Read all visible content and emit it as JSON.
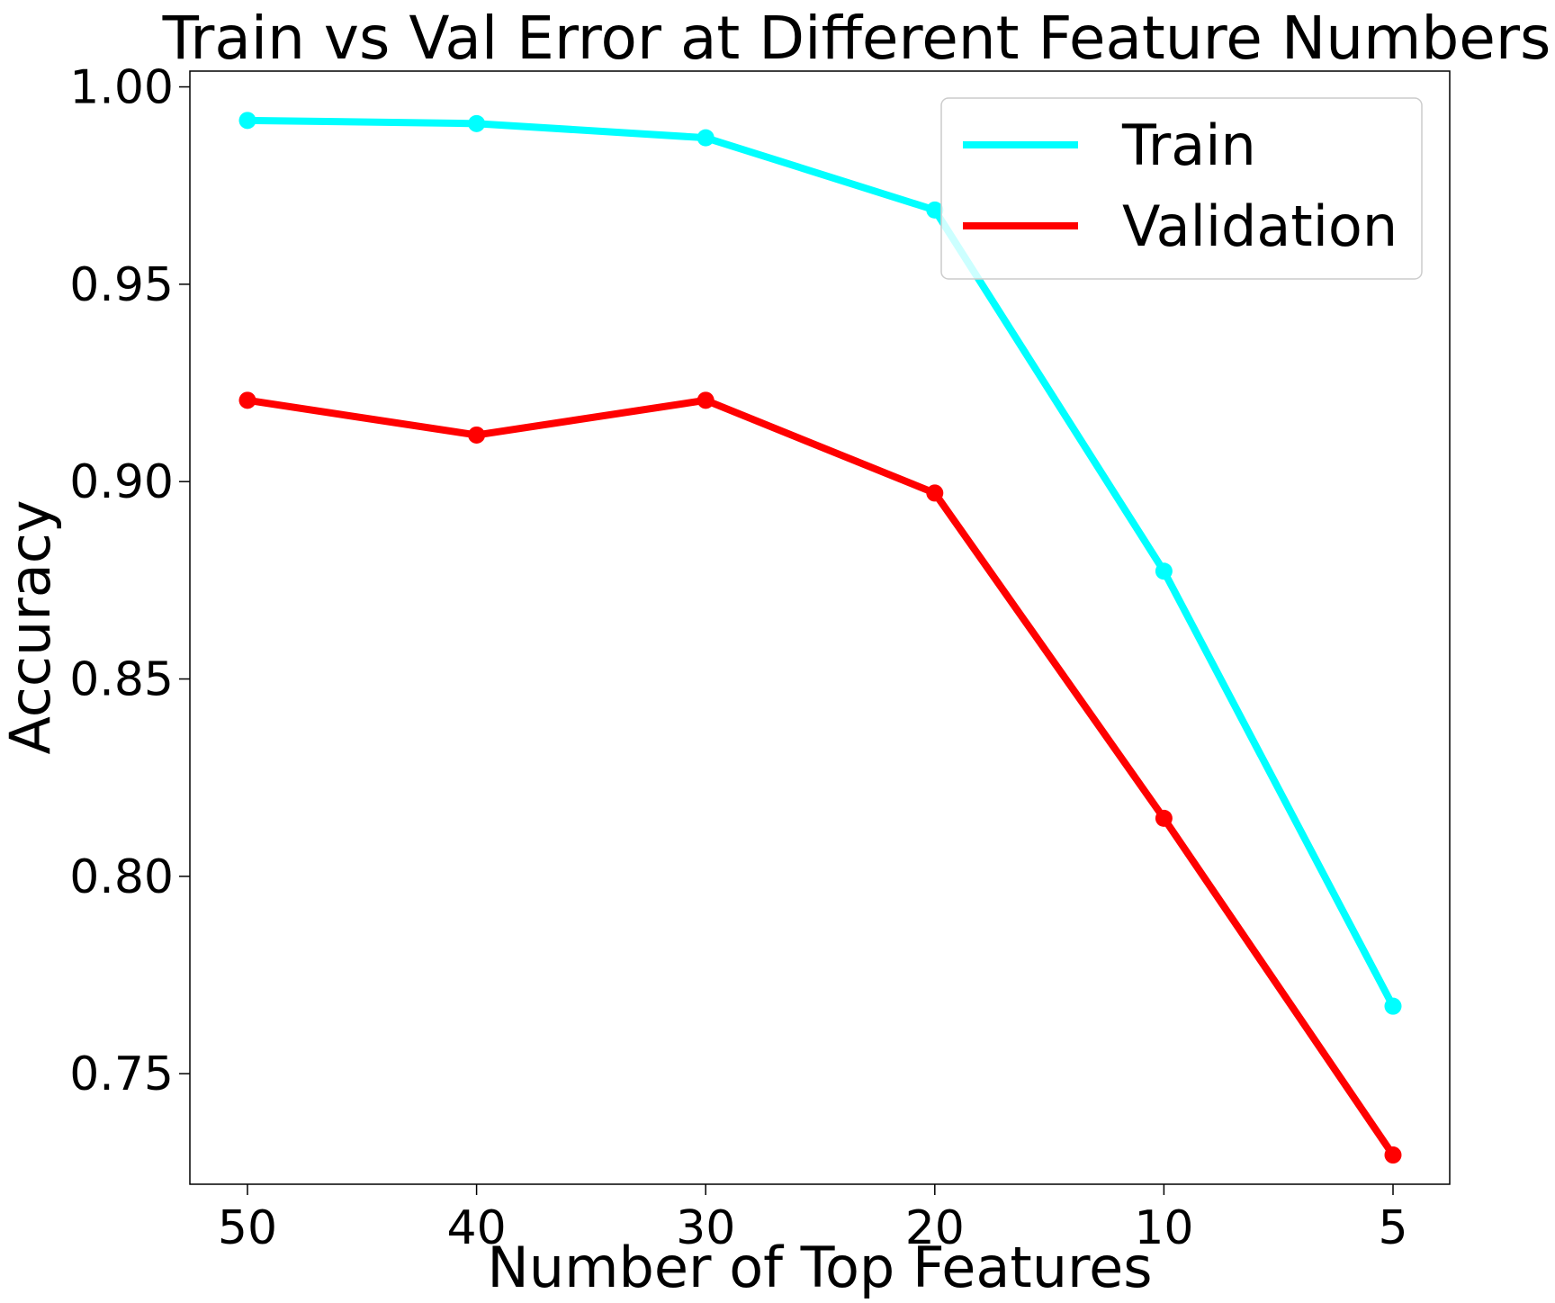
{
  "chart_data": {
    "type": "line",
    "title": "Train vs Val Error at Different Feature Numbers",
    "xlabel": "Number of Top Features",
    "ylabel": "Accuracy",
    "categories": [
      "50",
      "40",
      "30",
      "20",
      "10",
      "5"
    ],
    "ylim": [
      0.722,
      1.004
    ],
    "yticks": [
      "0.75",
      "0.80",
      "0.85",
      "0.90",
      "0.95",
      "1.00"
    ],
    "grid": false,
    "legend_position": "top-right",
    "series": [
      {
        "name": "Train",
        "color": "#00FFFF",
        "values": [
          0.9915,
          0.9907,
          0.9871,
          0.9688,
          0.8773,
          0.7671
        ]
      },
      {
        "name": "Validation",
        "color": "#FF0000",
        "values": [
          0.9206,
          0.9118,
          0.9206,
          0.8971,
          0.8147,
          0.7294
        ]
      }
    ]
  }
}
